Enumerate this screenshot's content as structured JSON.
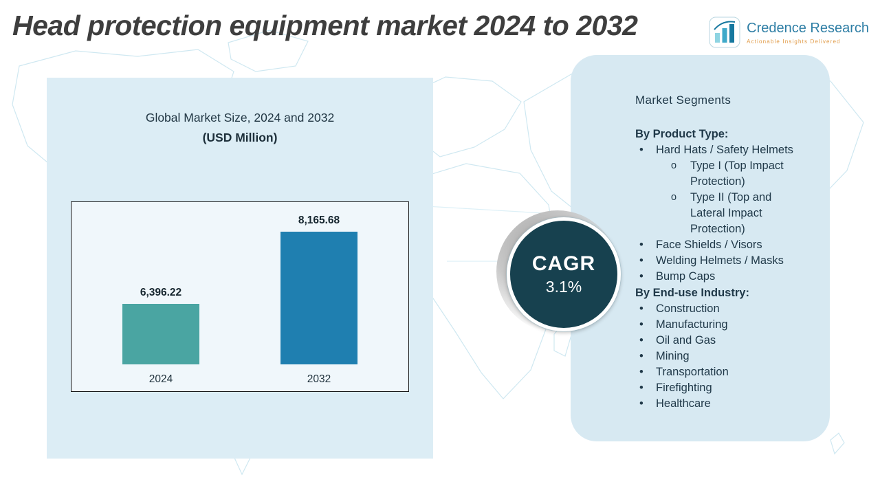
{
  "title": "Head protection equipment market 2024 to 2032",
  "brand": {
    "name": "Credence Research",
    "tagline": "Actionable Insights Delivered"
  },
  "chart_panel": {
    "heading": "Global Market Size, 2024 and 2032",
    "subheading": "(USD Million)"
  },
  "chart_data": {
    "type": "bar",
    "title": "Global Market Size, 2024 and 2032",
    "units": "USD Million",
    "categories": [
      "2024",
      "2032"
    ],
    "values": [
      6396.22,
      8165.68
    ],
    "value_labels": [
      "6,396.22",
      "8,165.68"
    ],
    "bar_colors": [
      "#4AA5A2",
      "#1F7FB0"
    ],
    "ylim": [
      4900,
      8400
    ],
    "axis_visible": false,
    "grid": false,
    "legend": false
  },
  "cagr_badge": {
    "label": "CAGR",
    "value": "3.1%"
  },
  "segments_panel": {
    "heading": "Market Segments",
    "groups": [
      {
        "title": "By Product Type:",
        "items": [
          {
            "label": "Hard Hats / Safety Helmets",
            "level": 1
          },
          {
            "label": "Type I (Top Impact Protection)",
            "level": 2
          },
          {
            "label": "Type II (Top and Lateral Impact Protection)",
            "level": 2
          },
          {
            "label": "Face Shields / Visors",
            "level": 1
          },
          {
            "label": "Welding Helmets / Masks",
            "level": 1
          },
          {
            "label": "Bump Caps",
            "level": 1
          }
        ]
      },
      {
        "title": "By End-use Industry:",
        "items": [
          {
            "label": "Construction",
            "level": 1
          },
          {
            "label": "Manufacturing",
            "level": 1
          },
          {
            "label": "Oil and Gas",
            "level": 1
          },
          {
            "label": "Mining",
            "level": 1
          },
          {
            "label": "Transportation",
            "level": 1
          },
          {
            "label": "Firefighting",
            "level": 1
          },
          {
            "label": "Healthcare",
            "level": 1
          }
        ]
      }
    ]
  },
  "colors": {
    "title_text": "#3E3E3E",
    "chart_panel_background": "#DCEDF5",
    "segments_panel_background": "#D7E9F2",
    "cagr_circle": "#17414F",
    "bar_2024": "#4AA5A2",
    "bar_2032": "#1F7FB0",
    "brand_name_text": "#2E7EA5",
    "brand_tagline_text": "#E09A46",
    "map_outline": "#CFE8F1"
  }
}
